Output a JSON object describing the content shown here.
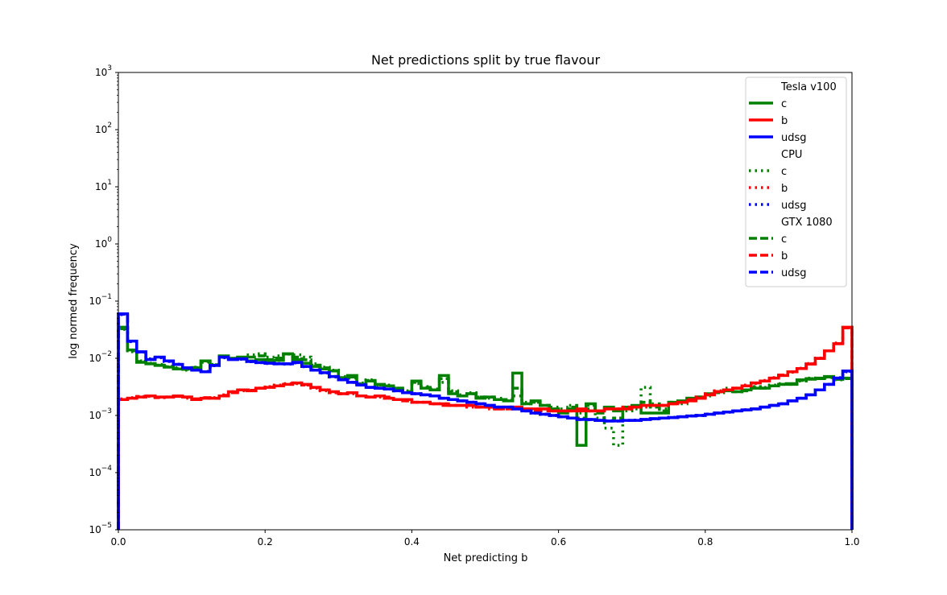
{
  "chart_data": {
    "type": "line",
    "title": "Net predictions split by true flavour",
    "xlabel": "Net predicting b",
    "ylabel": "log normed frequency",
    "xlim": [
      0,
      1
    ],
    "ylim": [
      1e-05,
      1000
    ],
    "yscale": "log",
    "grid": false,
    "legend_position": "top-right",
    "x_ticks": [
      {
        "value": 0.0,
        "label": "0.0"
      },
      {
        "value": 0.2,
        "label": "0.2"
      },
      {
        "value": 0.4,
        "label": "0.4"
      },
      {
        "value": 0.6,
        "label": "0.6"
      },
      {
        "value": 0.8,
        "label": "0.8"
      },
      {
        "value": 1.0,
        "label": "1.0"
      }
    ],
    "y_ticks": [
      {
        "exp": -5,
        "base": "10",
        "sup": "−5"
      },
      {
        "exp": -4,
        "base": "10",
        "sup": "−4"
      },
      {
        "exp": -3,
        "base": "10",
        "sup": "−3"
      },
      {
        "exp": -2,
        "base": "10",
        "sup": "−2"
      },
      {
        "exp": -1,
        "base": "10",
        "sup": "−1"
      },
      {
        "exp": 0,
        "base": "10",
        "sup": "0"
      },
      {
        "exp": 1,
        "base": "10",
        "sup": "1"
      },
      {
        "exp": 2,
        "base": "10",
        "sup": "2"
      },
      {
        "exp": 3,
        "base": "10",
        "sup": "3"
      }
    ],
    "colors": {
      "c": "#008000",
      "b": "#ff0000",
      "udsg": "#0000ff"
    },
    "bin_edges": [
      0.0,
      0.0125,
      0.025,
      0.0375,
      0.05,
      0.0625,
      0.075,
      0.0875,
      0.1,
      0.1125,
      0.125,
      0.1375,
      0.15,
      0.1625,
      0.175,
      0.1875,
      0.2,
      0.2125,
      0.225,
      0.2375,
      0.25,
      0.2625,
      0.275,
      0.2875,
      0.3,
      0.3125,
      0.325,
      0.3375,
      0.35,
      0.3625,
      0.375,
      0.3875,
      0.4,
      0.4125,
      0.425,
      0.4375,
      0.45,
      0.4625,
      0.475,
      0.4875,
      0.5,
      0.5125,
      0.525,
      0.5375,
      0.55,
      0.5625,
      0.575,
      0.5875,
      0.6,
      0.6125,
      0.625,
      0.6375,
      0.65,
      0.6625,
      0.675,
      0.6875,
      0.7,
      0.7125,
      0.725,
      0.7375,
      0.75,
      0.7625,
      0.775,
      0.7875,
      0.8,
      0.8125,
      0.825,
      0.8375,
      0.85,
      0.8625,
      0.875,
      0.8875,
      0.9,
      0.9125,
      0.925,
      0.9375,
      0.95,
      0.9625,
      0.975,
      0.9875,
      1.0
    ],
    "legend": [
      {
        "header": "Tesla v100",
        "entries": [
          {
            "label": "c",
            "color": "#008000",
            "style": "solid"
          },
          {
            "label": "b",
            "color": "#ff0000",
            "style": "solid"
          },
          {
            "label": "udsg",
            "color": "#0000ff",
            "style": "solid"
          }
        ]
      },
      {
        "header": "CPU",
        "entries": [
          {
            "label": "c",
            "color": "#008000",
            "style": "dotted"
          },
          {
            "label": "b",
            "color": "#ff0000",
            "style": "dotted"
          },
          {
            "label": "udsg",
            "color": "#0000ff",
            "style": "dotted"
          }
        ]
      },
      {
        "header": "GTX 1080",
        "entries": [
          {
            "label": "c",
            "color": "#008000",
            "style": "dashed"
          },
          {
            "label": "b",
            "color": "#ff0000",
            "style": "dashed"
          },
          {
            "label": "udsg",
            "color": "#0000ff",
            "style": "dashed"
          }
        ]
      }
    ],
    "series": [
      {
        "name": "c",
        "device": "Tesla v100",
        "style": "solid",
        "color": "#008000",
        "values": [
          0.035,
          0.014,
          0.0085,
          0.008,
          0.0075,
          0.007,
          0.0065,
          0.0065,
          0.0068,
          0.009,
          0.0075,
          0.011,
          0.01,
          0.0105,
          0.009,
          0.0095,
          0.0085,
          0.0092,
          0.012,
          0.0095,
          0.0082,
          0.0072,
          0.0065,
          0.006,
          0.0045,
          0.005,
          0.0035,
          0.004,
          0.0035,
          0.0033,
          0.003,
          0.0025,
          0.004,
          0.003,
          0.0028,
          0.005,
          0.0024,
          0.0022,
          0.0024,
          0.002,
          0.0021,
          0.0019,
          0.0018,
          0.0055,
          0.0016,
          0.0018,
          0.0015,
          0.0013,
          0.0011,
          0.0013,
          0.0003,
          0.0016,
          0.0012,
          0.0014,
          0.0012,
          0.0014,
          0.0015,
          0.0011,
          0.0011,
          0.0011,
          0.0017,
          0.0018,
          0.002,
          0.0021,
          0.0024,
          0.0026,
          0.0027,
          0.0026,
          0.0028,
          0.003,
          0.003,
          0.0033,
          0.0035,
          0.0036,
          0.0042,
          0.0043,
          0.0045,
          0.0048,
          0.0043,
          0.0045
        ]
      },
      {
        "name": "c",
        "device": "CPU",
        "style": "dotted",
        "color": "#008000",
        "values": [
          0.032,
          0.013,
          0.009,
          0.0082,
          0.0078,
          0.0072,
          0.0068,
          0.0062,
          0.007,
          0.0085,
          0.0078,
          0.0105,
          0.0098,
          0.0102,
          0.0115,
          0.012,
          0.0105,
          0.011,
          0.0118,
          0.0115,
          0.0105,
          0.008,
          0.007,
          0.0062,
          0.0048,
          0.0045,
          0.0037,
          0.0042,
          0.0033,
          0.0034,
          0.003,
          0.0027,
          0.0036,
          0.0032,
          0.0029,
          0.0038,
          0.0027,
          0.0023,
          0.0025,
          0.0021,
          0.002,
          0.002,
          0.0019,
          0.0022,
          0.0017,
          0.0017,
          0.0015,
          0.0014,
          0.0013,
          0.0015,
          0.0011,
          0.0013,
          0.0009,
          0.0006,
          0.0003,
          0.0012,
          0.0013,
          0.0031,
          0.0016,
          0.0013,
          0.0017,
          0.0016,
          0.0019,
          0.0021,
          0.0022,
          0.0025,
          0.003,
          0.0026,
          0.0027,
          0.0032,
          0.0031,
          0.0034,
          0.0036,
          0.0035,
          0.004,
          0.0045,
          0.0044,
          0.0046,
          0.0042,
          0.0044
        ]
      },
      {
        "name": "c",
        "device": "GTX 1080",
        "style": "dashed",
        "color": "#008000",
        "values": [
          0.033,
          0.0135,
          0.0088,
          0.0081,
          0.0076,
          0.0071,
          0.0066,
          0.0064,
          0.0069,
          0.0088,
          0.0077,
          0.0108,
          0.0099,
          0.0103,
          0.0105,
          0.011,
          0.0095,
          0.0101,
          0.0119,
          0.0105,
          0.0094,
          0.0076,
          0.0068,
          0.0061,
          0.0046,
          0.0047,
          0.0036,
          0.0041,
          0.0034,
          0.0033,
          0.003,
          0.0026,
          0.0038,
          0.0031,
          0.0028,
          0.0044,
          0.0026,
          0.0022,
          0.0024,
          0.0021,
          0.0021,
          0.0019,
          0.0019,
          0.003,
          0.0016,
          0.0017,
          0.0015,
          0.0013,
          0.0012,
          0.0014,
          0.0009,
          0.0015,
          0.0011,
          0.0008,
          0.0009,
          0.0013,
          0.0014,
          0.0017,
          0.0014,
          0.0012,
          0.0017,
          0.0017,
          0.002,
          0.0021,
          0.0023,
          0.0025,
          0.0028,
          0.0026,
          0.0027,
          0.0031,
          0.003,
          0.0033,
          0.0035,
          0.0035,
          0.0041,
          0.0044,
          0.0044,
          0.0047,
          0.0043,
          0.0044
        ]
      },
      {
        "name": "b",
        "device": "Tesla v100",
        "style": "solid",
        "color": "#ff0000",
        "values": [
          0.0019,
          0.002,
          0.0021,
          0.0022,
          0.0021,
          0.0021,
          0.0022,
          0.0021,
          0.0019,
          0.002,
          0.002,
          0.0022,
          0.0026,
          0.0028,
          0.0027,
          0.003,
          0.0031,
          0.0033,
          0.0035,
          0.0037,
          0.0035,
          0.0031,
          0.0028,
          0.0026,
          0.0024,
          0.0025,
          0.0022,
          0.0021,
          0.0022,
          0.002,
          0.0019,
          0.0019,
          0.0017,
          0.0017,
          0.0016,
          0.0016,
          0.0015,
          0.0015,
          0.0015,
          0.0014,
          0.0014,
          0.0013,
          0.0014,
          0.0014,
          0.0013,
          0.0013,
          0.0013,
          0.0012,
          0.0012,
          0.0012,
          0.0013,
          0.0012,
          0.0012,
          0.0013,
          0.0013,
          0.0013,
          0.0014,
          0.0015,
          0.0015,
          0.0015,
          0.0016,
          0.0017,
          0.0018,
          0.002,
          0.0023,
          0.0026,
          0.0028,
          0.003,
          0.0033,
          0.0037,
          0.004,
          0.0045,
          0.005,
          0.0058,
          0.0066,
          0.0079,
          0.0099,
          0.0135,
          0.018,
          0.035,
          0.11
        ]
      },
      {
        "name": "b",
        "device": "CPU",
        "style": "dotted",
        "color": "#ff0000",
        "values": [
          0.00195,
          0.00205,
          0.0021,
          0.00215,
          0.0021,
          0.0021,
          0.0022,
          0.002,
          0.0019,
          0.002,
          0.00205,
          0.0023,
          0.0026,
          0.0027,
          0.0028,
          0.003,
          0.0032,
          0.0034,
          0.0036,
          0.0036,
          0.0034,
          0.003,
          0.0027,
          0.0025,
          0.0024,
          0.0024,
          0.0022,
          0.0021,
          0.0021,
          0.002,
          0.0019,
          0.0018,
          0.0017,
          0.0017,
          0.0016,
          0.0016,
          0.0015,
          0.0015,
          0.0014,
          0.0014,
          0.0013,
          0.0013,
          0.0013,
          0.0013,
          0.0013,
          0.0013,
          0.0012,
          0.0012,
          0.0012,
          0.0012,
          0.0012,
          0.0012,
          0.0012,
          0.0013,
          0.0013,
          0.0013,
          0.0014,
          0.0014,
          0.0015,
          0.0015,
          0.0016,
          0.0017,
          0.0018,
          0.0021,
          0.0024,
          0.0027,
          0.0028,
          0.003,
          0.0034,
          0.0036,
          0.0041,
          0.0046,
          0.0051,
          0.0057,
          0.0067,
          0.0081,
          0.0101,
          0.0135,
          0.0185,
          0.034,
          0.1
        ]
      },
      {
        "name": "b",
        "device": "GTX 1080",
        "style": "dashed",
        "color": "#ff0000",
        "values": [
          0.0019,
          0.002,
          0.00215,
          0.0022,
          0.00205,
          0.0021,
          0.00215,
          0.0021,
          0.00195,
          0.00205,
          0.002,
          0.00225,
          0.0025,
          0.0028,
          0.00275,
          0.003,
          0.00315,
          0.0033,
          0.0035,
          0.0037,
          0.0034,
          0.0031,
          0.0028,
          0.0025,
          0.0024,
          0.0025,
          0.0022,
          0.0021,
          0.0022,
          0.0021,
          0.0019,
          0.0018,
          0.0017,
          0.0017,
          0.0016,
          0.0015,
          0.0015,
          0.0015,
          0.0015,
          0.0014,
          0.0014,
          0.0013,
          0.0013,
          0.0014,
          0.0013,
          0.0012,
          0.0013,
          0.0012,
          0.0012,
          0.0012,
          0.0012,
          0.0012,
          0.0012,
          0.0013,
          0.0013,
          0.0014,
          0.0014,
          0.0015,
          0.0015,
          0.0015,
          0.0016,
          0.0017,
          0.0019,
          0.002,
          0.0023,
          0.0026,
          0.0028,
          0.003,
          0.0033,
          0.0037,
          0.004,
          0.0045,
          0.0051,
          0.0058,
          0.0066,
          0.008,
          0.01,
          0.0135,
          0.018,
          0.034,
          0.105
        ]
      },
      {
        "name": "udsg",
        "device": "Tesla v100",
        "style": "solid",
        "color": "#0000ff",
        "values": [
          0.06,
          0.02,
          0.013,
          0.0095,
          0.0105,
          0.009,
          0.0078,
          0.0068,
          0.0062,
          0.0058,
          0.0075,
          0.0105,
          0.0095,
          0.0098,
          0.0088,
          0.0084,
          0.0082,
          0.008,
          0.008,
          0.0085,
          0.0072,
          0.0062,
          0.0056,
          0.0048,
          0.0042,
          0.0038,
          0.0034,
          0.0031,
          0.003,
          0.0029,
          0.0027,
          0.0025,
          0.0024,
          0.0023,
          0.0022,
          0.002,
          0.0019,
          0.0018,
          0.0017,
          0.0016,
          0.0015,
          0.0014,
          0.0014,
          0.0013,
          0.0012,
          0.0011,
          0.00105,
          0.001,
          0.00095,
          0.0009,
          0.00085,
          0.00085,
          0.00082,
          0.0008,
          0.0008,
          0.00082,
          0.00082,
          0.00085,
          0.00088,
          0.0009,
          0.00092,
          0.00095,
          0.00098,
          0.001,
          0.00105,
          0.0011,
          0.00115,
          0.0012,
          0.00125,
          0.0013,
          0.0014,
          0.0015,
          0.0016,
          0.0018,
          0.002,
          0.0023,
          0.0028,
          0.0035,
          0.0045,
          0.006,
          0.028
        ]
      },
      {
        "name": "udsg",
        "device": "CPU",
        "style": "dotted",
        "color": "#0000ff",
        "values": [
          0.058,
          0.0195,
          0.0128,
          0.0098,
          0.0102,
          0.0088,
          0.0079,
          0.0067,
          0.0063,
          0.0059,
          0.0074,
          0.0102,
          0.0097,
          0.0096,
          0.0087,
          0.0085,
          0.0081,
          0.0081,
          0.0079,
          0.0083,
          0.0071,
          0.0063,
          0.0055,
          0.0047,
          0.0043,
          0.0038,
          0.0035,
          0.0031,
          0.003,
          0.0029,
          0.0027,
          0.0025,
          0.0024,
          0.0023,
          0.0022,
          0.002,
          0.0019,
          0.0018,
          0.0017,
          0.0016,
          0.0015,
          0.0014,
          0.0014,
          0.0013,
          0.0012,
          0.0011,
          0.00105,
          0.001,
          0.00095,
          0.0009,
          0.00086,
          0.00084,
          0.00082,
          0.00081,
          0.0008,
          0.00082,
          0.00083,
          0.00085,
          0.00087,
          0.0009,
          0.00093,
          0.00095,
          0.00098,
          0.001,
          0.00106,
          0.0011,
          0.00114,
          0.0012,
          0.00126,
          0.0013,
          0.0014,
          0.0015,
          0.0016,
          0.0018,
          0.002,
          0.0023,
          0.0028,
          0.0035,
          0.0046,
          0.0058,
          0.027
        ]
      },
      {
        "name": "udsg",
        "device": "GTX 1080",
        "style": "dashed",
        "color": "#0000ff",
        "values": [
          0.059,
          0.0198,
          0.0129,
          0.0096,
          0.0104,
          0.0089,
          0.0078,
          0.0068,
          0.0062,
          0.0058,
          0.0075,
          0.0104,
          0.0096,
          0.0097,
          0.0088,
          0.0084,
          0.0082,
          0.008,
          0.008,
          0.0084,
          0.0072,
          0.0062,
          0.0056,
          0.0048,
          0.0042,
          0.0038,
          0.0034,
          0.0031,
          0.003,
          0.0029,
          0.0027,
          0.0025,
          0.0024,
          0.0023,
          0.0022,
          0.002,
          0.0019,
          0.0018,
          0.0017,
          0.0016,
          0.0015,
          0.0014,
          0.0014,
          0.0013,
          0.0012,
          0.0011,
          0.00105,
          0.001,
          0.00095,
          0.0009,
          0.00085,
          0.00085,
          0.00082,
          0.0008,
          0.0008,
          0.00082,
          0.00082,
          0.00085,
          0.00088,
          0.0009,
          0.00092,
          0.00095,
          0.00098,
          0.001,
          0.00105,
          0.0011,
          0.00115,
          0.0012,
          0.00125,
          0.0013,
          0.0014,
          0.0015,
          0.0016,
          0.0018,
          0.002,
          0.0023,
          0.0028,
          0.0035,
          0.0045,
          0.0059,
          0.0275
        ]
      }
    ]
  }
}
